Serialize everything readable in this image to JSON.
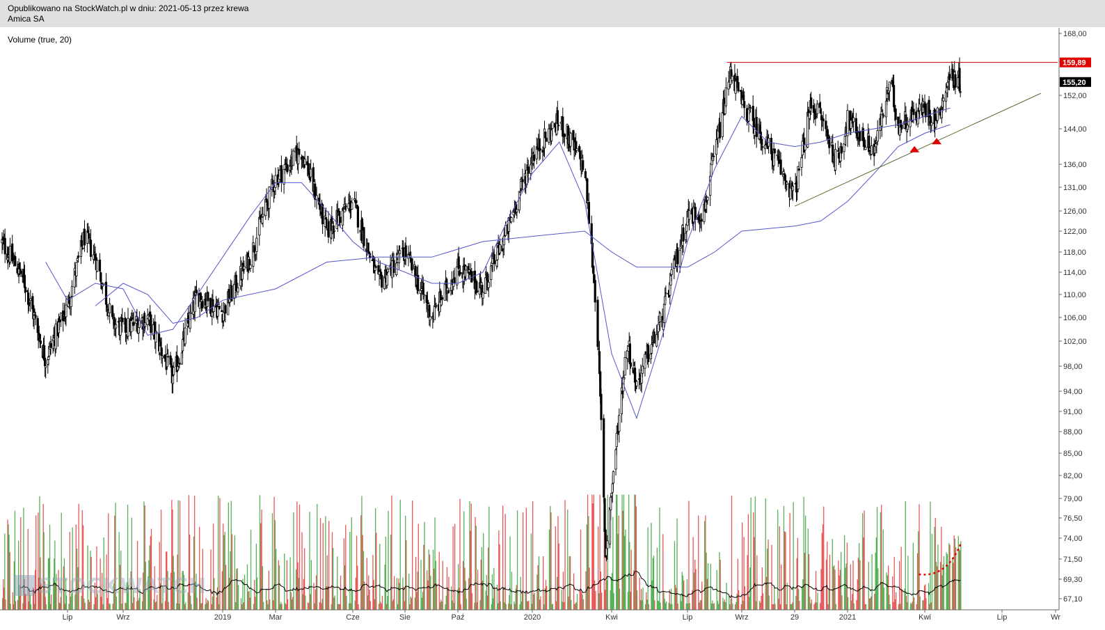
{
  "header": {
    "published": "Opublikowano na StockWatch.pl w dniu: 2021-05-13 przez krewa",
    "symbol": "Amica SA"
  },
  "indicator_label": "Volume (true, 20)",
  "watermark": "STOCKWATCH",
  "chart_data": {
    "type": "candlestick",
    "title": "Amica SA",
    "xlabel": "",
    "ylabel": "",
    "y_ticks": [
      67.1,
      69.3,
      71.5,
      74.0,
      76.5,
      79.0,
      82.0,
      85.0,
      88.0,
      91.0,
      94.0,
      98.0,
      102.0,
      106.0,
      110.0,
      114.0,
      118.0,
      122.0,
      126.0,
      131.0,
      136.0,
      144.0,
      152.0,
      160.0,
      168.0
    ],
    "y_tick_labels": [
      "67,10",
      "69,30",
      "71,50",
      "74,00",
      "76,50",
      "79,00",
      "82,00",
      "85,00",
      "88,00",
      "91,00",
      "94,00",
      "98,00",
      "102,00",
      "106,00",
      "110,00",
      "114,00",
      "118,00",
      "122,00",
      "126,00",
      "131,00",
      "136,00",
      "144,00",
      "152,00",
      "160,00",
      "168,00"
    ],
    "y_scale": "log",
    "x_ticks": [
      {
        "label": "Lip",
        "month": "2018-07"
      },
      {
        "label": "Wrz",
        "month": "2018-09"
      },
      {
        "label": "2019",
        "month": "2019-01"
      },
      {
        "label": "Mar",
        "month": "2019-03"
      },
      {
        "label": "Cze",
        "month": "2019-06"
      },
      {
        "label": "Sie",
        "month": "2019-08"
      },
      {
        "label": "Paź",
        "month": "2019-10"
      },
      {
        "label": "2020",
        "month": "2020-01"
      },
      {
        "label": "Kwi",
        "month": "2020-04"
      },
      {
        "label": "Lip",
        "month": "2020-07"
      },
      {
        "label": "Wrz",
        "month": "2020-09"
      },
      {
        "label": "29",
        "month": "2020-11"
      },
      {
        "label": "2021",
        "month": "2021-01"
      },
      {
        "label": "Kwi",
        "month": "2021-04"
      },
      {
        "label": "Lip",
        "month": "2021-07"
      },
      {
        "label": "Wr",
        "month": "2021-09"
      }
    ],
    "price_path": [
      {
        "date": "2018-04",
        "price": 120
      },
      {
        "date": "2018-05",
        "price": 113
      },
      {
        "date": "2018-06",
        "price": 99
      },
      {
        "date": "2018-07",
        "price": 108
      },
      {
        "date": "2018-07-20",
        "price": 121
      },
      {
        "date": "2018-08",
        "price": 117
      },
      {
        "date": "2018-08-20",
        "price": 105
      },
      {
        "date": "2018-09",
        "price": 104
      },
      {
        "date": "2018-10",
        "price": 106
      },
      {
        "date": "2018-11",
        "price": 96
      },
      {
        "date": "2018-12",
        "price": 110
      },
      {
        "date": "2019-01",
        "price": 107
      },
      {
        "date": "2019-02",
        "price": 117
      },
      {
        "date": "2019-03",
        "price": 133
      },
      {
        "date": "2019-04",
        "price": 139
      },
      {
        "date": "2019-05",
        "price": 122
      },
      {
        "date": "2019-06",
        "price": 128
      },
      {
        "date": "2019-07",
        "price": 112
      },
      {
        "date": "2019-08",
        "price": 118
      },
      {
        "date": "2019-09",
        "price": 106
      },
      {
        "date": "2019-10",
        "price": 115
      },
      {
        "date": "2019-11",
        "price": 111
      },
      {
        "date": "2019-12",
        "price": 122
      },
      {
        "date": "2020-01",
        "price": 138
      },
      {
        "date": "2020-02",
        "price": 146
      },
      {
        "date": "2020-03",
        "price": 135
      },
      {
        "date": "2020-03-15",
        "price": 106
      },
      {
        "date": "2020-03-25",
        "price": 72
      },
      {
        "date": "2020-04",
        "price": 80
      },
      {
        "date": "2020-04-20",
        "price": 102
      },
      {
        "date": "2020-05",
        "price": 95
      },
      {
        "date": "2020-06",
        "price": 106
      },
      {
        "date": "2020-06-20",
        "price": 118
      },
      {
        "date": "2020-07",
        "price": 125
      },
      {
        "date": "2020-07-20",
        "price": 126
      },
      {
        "date": "2020-08",
        "price": 138
      },
      {
        "date": "2020-08-20",
        "price": 158
      },
      {
        "date": "2020-09",
        "price": 150
      },
      {
        "date": "2020-10",
        "price": 140
      },
      {
        "date": "2020-11",
        "price": 129
      },
      {
        "date": "2020-11-20",
        "price": 150
      },
      {
        "date": "2020-12",
        "price": 147
      },
      {
        "date": "2020-12-20",
        "price": 136
      },
      {
        "date": "2021-01",
        "price": 146
      },
      {
        "date": "2021-02",
        "price": 139
      },
      {
        "date": "2021-02-20",
        "price": 155
      },
      {
        "date": "2021-03",
        "price": 145
      },
      {
        "date": "2021-04",
        "price": 149
      },
      {
        "date": "2021-04-15",
        "price": 146
      },
      {
        "date": "2021-05",
        "price": 157
      },
      {
        "date": "2021-05-13",
        "price": 155.2
      }
    ],
    "ma_short_path": [
      {
        "date": "2018-06",
        "price": 116
      },
      {
        "date": "2018-07",
        "price": 109
      },
      {
        "date": "2018-08",
        "price": 112
      },
      {
        "date": "2018-09",
        "price": 111
      },
      {
        "date": "2018-10",
        "price": 103
      },
      {
        "date": "2018-11",
        "price": 104
      },
      {
        "date": "2018-12",
        "price": 110
      },
      {
        "date": "2019-01",
        "price": 117
      },
      {
        "date": "2019-02",
        "price": 125
      },
      {
        "date": "2019-03",
        "price": 132
      },
      {
        "date": "2019-04",
        "price": 132
      },
      {
        "date": "2019-05",
        "price": 126
      },
      {
        "date": "2019-06",
        "price": 120
      },
      {
        "date": "2019-07",
        "price": 116
      },
      {
        "date": "2019-08",
        "price": 114
      },
      {
        "date": "2019-09",
        "price": 112
      },
      {
        "date": "2019-10",
        "price": 112
      },
      {
        "date": "2019-11",
        "price": 114
      },
      {
        "date": "2019-12",
        "price": 124
      },
      {
        "date": "2020-01",
        "price": 134
      },
      {
        "date": "2020-02",
        "price": 141
      },
      {
        "date": "2020-03",
        "price": 128
      },
      {
        "date": "2020-04",
        "price": 100
      },
      {
        "date": "2020-05",
        "price": 90
      },
      {
        "date": "2020-06",
        "price": 103
      },
      {
        "date": "2020-07",
        "price": 120
      },
      {
        "date": "2020-08",
        "price": 135
      },
      {
        "date": "2020-09",
        "price": 147
      },
      {
        "date": "2020-10",
        "price": 141
      },
      {
        "date": "2020-11",
        "price": 140
      },
      {
        "date": "2020-12",
        "price": 141
      },
      {
        "date": "2021-01",
        "price": 143
      },
      {
        "date": "2021-02",
        "price": 144
      },
      {
        "date": "2021-03",
        "price": 145
      },
      {
        "date": "2021-04",
        "price": 147
      },
      {
        "date": "2021-05",
        "price": 149
      }
    ],
    "ma_long_path": [
      {
        "date": "2018-08",
        "price": 108
      },
      {
        "date": "2018-09",
        "price": 112
      },
      {
        "date": "2018-10",
        "price": 110
      },
      {
        "date": "2018-11",
        "price": 105
      },
      {
        "date": "2018-12",
        "price": 106
      },
      {
        "date": "2019-01",
        "price": 109
      },
      {
        "date": "2019-03",
        "price": 111
      },
      {
        "date": "2019-05",
        "price": 116
      },
      {
        "date": "2019-07",
        "price": 117
      },
      {
        "date": "2019-09",
        "price": 117
      },
      {
        "date": "2019-11",
        "price": 120
      },
      {
        "date": "2020-01",
        "price": 121
      },
      {
        "date": "2020-03",
        "price": 122
      },
      {
        "date": "2020-04",
        "price": 118
      },
      {
        "date": "2020-05",
        "price": 115
      },
      {
        "date": "2020-07",
        "price": 115
      },
      {
        "date": "2020-08",
        "price": 118
      },
      {
        "date": "2020-09",
        "price": 122
      },
      {
        "date": "2020-11",
        "price": 123
      },
      {
        "date": "2020-12",
        "price": 124
      },
      {
        "date": "2021-01",
        "price": 128
      },
      {
        "date": "2021-02",
        "price": 134
      },
      {
        "date": "2021-03",
        "price": 140
      },
      {
        "date": "2021-04",
        "price": 143
      },
      {
        "date": "2021-05",
        "price": 145
      }
    ],
    "price_labels": [
      {
        "label": "159,89",
        "value": 159.89,
        "color": "#e00000",
        "kind": "resistance"
      },
      {
        "label": "155,20",
        "value": 155.2,
        "color": "#000000",
        "kind": "last"
      }
    ],
    "resistance_line": {
      "value": 159.89,
      "from": "2020-08-15",
      "color": "#c00000"
    },
    "trend_line": {
      "from": {
        "date": "2020-11-01",
        "price": 127
      },
      "to": {
        "date": "2021-08-15",
        "price": 152.5
      },
      "color": "#556b2f"
    },
    "signal_markers": [
      {
        "date": "2021-03-20",
        "price": 139.5,
        "color": "#e00000"
      },
      {
        "date": "2021-04-15",
        "price": 141.3,
        "color": "#e00000"
      }
    ],
    "volume": {
      "legend": "Volume (true, 20)",
      "colors": {
        "up": "#2e9e2e",
        "down": "#e03030"
      }
    },
    "volume_highlight": {
      "from": "2021-03-25",
      "to": "2021-05-13",
      "style": "dotted",
      "color": "#e00000"
    },
    "colors": {
      "candle": "#000000",
      "ma_short": "#5555cc",
      "ma_long": "#5555cc",
      "volume_ma": "#000000",
      "axis_label_bg": "#000000"
    },
    "grid": false,
    "legend_position": "top-left"
  }
}
